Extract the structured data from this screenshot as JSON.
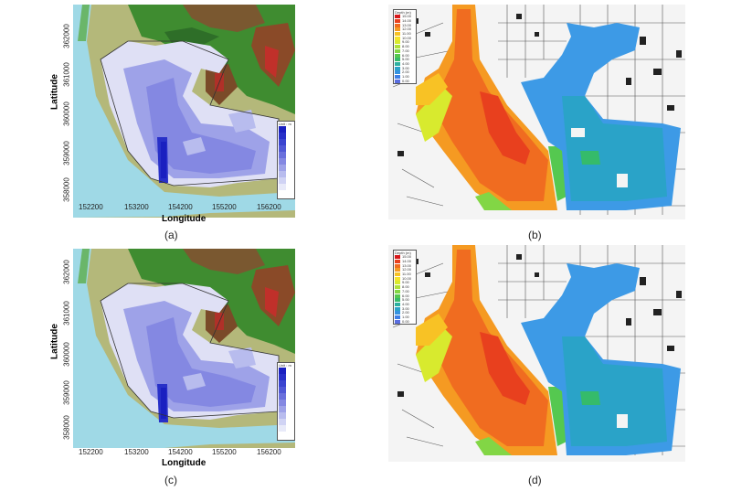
{
  "panels": {
    "a": {
      "caption": "(a)",
      "ylabel": "Latitude",
      "xlabel": "Longitude",
      "xticks": [
        "152200",
        "153200",
        "154200",
        "155200",
        "156200"
      ],
      "yticks": [
        "362000",
        "361000",
        "360000",
        "359000",
        "358000"
      ],
      "legend_title": "Unit : m"
    },
    "b": {
      "caption": "(b)",
      "legend_title": "Depth (m)",
      "legend_values": [
        "15.00",
        "14.00",
        "13.00",
        "12.00",
        "11.00",
        "10.00",
        "9.00",
        "8.00",
        "7.00",
        "6.00",
        "5.00",
        "4.00",
        "3.00",
        "2.00",
        "1.00",
        "0.00"
      ]
    },
    "c": {
      "caption": "(c)",
      "ylabel": "Latitude",
      "xlabel": "Longitude",
      "xticks": [
        "152200",
        "153200",
        "154200",
        "155200",
        "156200"
      ],
      "yticks": [
        "362000",
        "361000",
        "360000",
        "359000",
        "358000"
      ],
      "legend_title": "Unit : m"
    },
    "d": {
      "caption": "(d)",
      "legend_title": "Depth (m)",
      "legend_values": [
        "15.00",
        "14.00",
        "13.00",
        "12.00",
        "11.00",
        "10.00",
        "9.00",
        "8.00",
        "7.00",
        "6.00",
        "5.00",
        "4.00",
        "3.00",
        "2.00",
        "1.00",
        "0.00"
      ]
    }
  },
  "colors": {
    "river": "#9fd9e6",
    "flood_light": "#dfe0f5",
    "flood_mid": "#9a9ce0",
    "flood_dark": "#2830c8",
    "terrain_low": "#a8b070",
    "terrain_green": "#3a8a30",
    "terrain_brown": "#8a5a30",
    "depth_high": "#e03020",
    "depth_mid": "#f0c020",
    "depth_low": "#40a0e8"
  },
  "depth_scale": [
    "#d7191c",
    "#e8401e",
    "#f06c20",
    "#f59a22",
    "#f8c225",
    "#f7e32a",
    "#d8ea2e",
    "#aee13a",
    "#82d645",
    "#55c850",
    "#35bb6a",
    "#2cb0a0",
    "#2aa3c8",
    "#3592e0",
    "#3d7ee6",
    "#5a6ee0"
  ],
  "unit_scale": [
    "#1a20c0",
    "#2830c8",
    "#3a44d0",
    "#5058d6",
    "#6a70dc",
    "#8488e2",
    "#9ea2e8",
    "#b8bcee",
    "#d0d3f4",
    "#e8eaf9"
  ]
}
